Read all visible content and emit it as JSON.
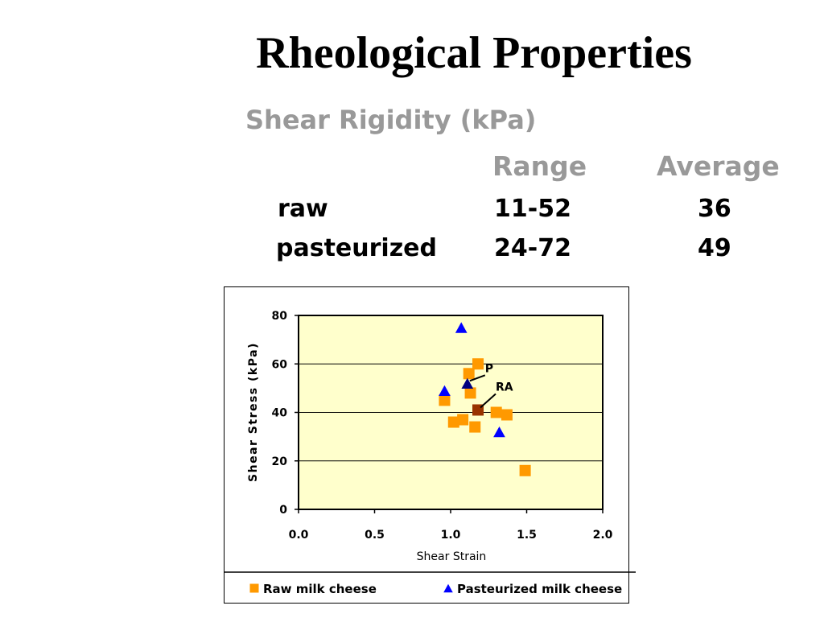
{
  "slide": {
    "title": "Rheological Properties",
    "subtitle": "Shear Rigidity (kPa)"
  },
  "table": {
    "headers": [
      "Range",
      "Average"
    ],
    "rows": [
      {
        "label": "raw",
        "range": "11-52",
        "average": "36"
      },
      {
        "label": "pasteurized",
        "range": "24-72",
        "average": "49"
      }
    ]
  },
  "chart_data": {
    "type": "scatter",
    "xlabel": "Shear Strain",
    "ylabel": "Shear Stress (kPa)",
    "xlim": [
      0,
      2
    ],
    "ylim": [
      0,
      80
    ],
    "xticks": [
      "0.0",
      "0.5",
      "1.0",
      "1.5",
      "2.0"
    ],
    "yticks": [
      "0",
      "20",
      "40",
      "60",
      "80"
    ],
    "grid": "horizontal",
    "plot_background": "#ffffcc",
    "legend_position": "bottom",
    "series": [
      {
        "name": "Raw milk cheese",
        "marker": "square",
        "color": "#ff9900",
        "points": [
          {
            "x": 0.96,
            "y": 45
          },
          {
            "x": 1.02,
            "y": 36
          },
          {
            "x": 1.08,
            "y": 37
          },
          {
            "x": 1.12,
            "y": 56
          },
          {
            "x": 1.13,
            "y": 48
          },
          {
            "x": 1.16,
            "y": 34
          },
          {
            "x": 1.18,
            "y": 60
          },
          {
            "x": 1.3,
            "y": 40
          },
          {
            "x": 1.37,
            "y": 39
          },
          {
            "x": 1.49,
            "y": 16
          }
        ]
      },
      {
        "name": "Pasteurized milk cheese",
        "marker": "triangle",
        "color": "#0000ff",
        "points": [
          {
            "x": 0.96,
            "y": 49
          },
          {
            "x": 1.07,
            "y": 75
          },
          {
            "x": 1.32,
            "y": 32
          }
        ]
      }
    ],
    "averages": [
      {
        "label": "P",
        "x": 1.11,
        "y": 52,
        "marker": "triangle",
        "color": "#000080"
      },
      {
        "label": "RA",
        "x": 1.18,
        "y": 41,
        "marker": "square",
        "color": "#993300"
      }
    ]
  }
}
